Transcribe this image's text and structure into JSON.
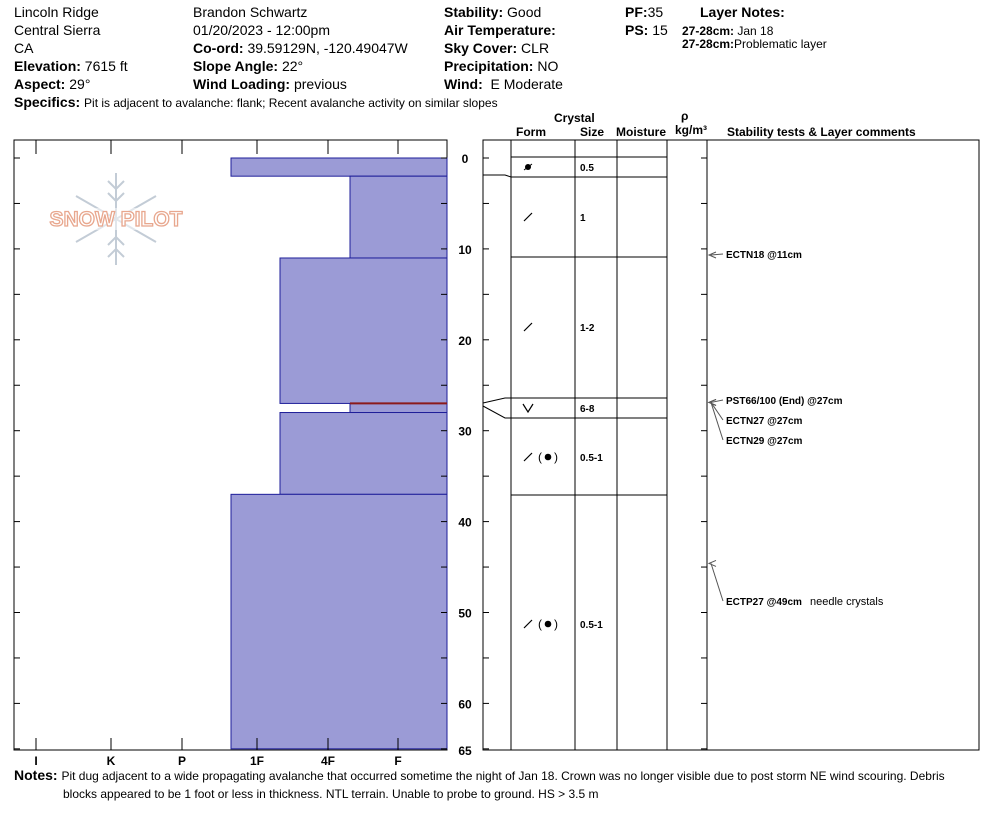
{
  "header": {
    "location": "Lincoln Ridge",
    "range": "Central Sierra",
    "state": "CA",
    "elevation_label": "Elevation:",
    "elevation": "7615 ft",
    "aspect_label": "Aspect:",
    "aspect": "29°",
    "observer": "Brandon Schwartz",
    "datetime": "01/20/2023 - 12:00pm",
    "coord_label": "Co-ord:",
    "coord": "39.59129N, -120.49047W",
    "slope_label": "Slope Angle:",
    "slope": "22°",
    "wind_loading_label": "Wind Loading:",
    "wind_loading": "previous",
    "stability_label": "Stability:",
    "stability": "Good",
    "air_temp_label": "Air Temperature:",
    "air_temp": "",
    "sky_label": "Sky Cover:",
    "sky": "CLR",
    "precip_label": "Precipitation:",
    "precip": "NO",
    "wind_label": "Wind:",
    "wind": "E Moderate",
    "pf_label": "PF:",
    "pf": "35",
    "ps_label": "PS:",
    "ps": "15",
    "layer_notes_label": "Layer Notes:",
    "layer_notes": [
      {
        "depth": "27-28cm:",
        "text": "Jan 18"
      },
      {
        "depth": "27-28cm:",
        "text": "Problematic layer"
      }
    ],
    "specifics_label": "Specifics:",
    "specifics": "Pit is adjacent to avalanche: flank; Recent avalanche activity on similar slopes"
  },
  "logo": {
    "text": "SNOW PILOT"
  },
  "columns": {
    "crystal": "Crystal",
    "form": "Form",
    "size": "Size",
    "moisture": "Moisture",
    "rho": "ρ",
    "density_unit": "kg/m³",
    "stability": "Stability tests & Layer comments"
  },
  "chart_data": {
    "type": "bar",
    "title": "",
    "depth_range": [
      0,
      65
    ],
    "depth_ticks": [
      0,
      10,
      20,
      30,
      40,
      50,
      60,
      65
    ],
    "hardness_ticks": [
      "I",
      "K",
      "P",
      "1F",
      "4F",
      "F"
    ],
    "hardness_scale_note": "hardness index: F=0 … I=6",
    "layers": [
      {
        "top": 0,
        "bottom": 2,
        "hardness_index": 2.4
      },
      {
        "top": 2,
        "bottom": 11,
        "hardness_index": 0.7
      },
      {
        "top": 11,
        "bottom": 27,
        "hardness_index": 1.7
      },
      {
        "top": 27,
        "bottom": 28,
        "hardness_index": 0.7
      },
      {
        "top": 28,
        "bottom": 37,
        "hardness_index": 1.7
      },
      {
        "top": 37,
        "bottom": 65,
        "hardness_index": 2.4
      }
    ],
    "weak_layer_depth": 27,
    "crystal_rows": [
      {
        "top": 0,
        "bottom": 2,
        "form": "rounding-faceted",
        "size": "0.5"
      },
      {
        "top": 2,
        "bottom": 11,
        "form": "decomposing",
        "size": "1"
      },
      {
        "top": 11,
        "bottom": 27,
        "form": "decomposing",
        "size": "1-2"
      },
      {
        "top": 27,
        "bottom": 28,
        "form": "surface-hoar",
        "size": "6-8"
      },
      {
        "top": 28,
        "bottom": 37,
        "form": "decomposing-rounded",
        "size": "0.5-1"
      },
      {
        "top": 37,
        "bottom": 65,
        "form": "decomposing-rounded",
        "size": "0.5-1"
      }
    ],
    "tests": [
      {
        "depth": 11,
        "label": "ECTN18 @11cm",
        "comment": ""
      },
      {
        "depth": 27,
        "label": "PST66/100 (End) @27cm",
        "comment": ""
      },
      {
        "depth": 27,
        "label": "ECTN27 @27cm",
        "comment": ""
      },
      {
        "depth": 27,
        "label": "ECTN29 @27cm",
        "comment": ""
      },
      {
        "depth": 49,
        "label": "ECTP27 @49cm",
        "comment": "needle crystals"
      }
    ]
  },
  "notes_label": "Notes:",
  "notes_line1": "Pit dug adjacent to a wide propagating avalanche that occurred sometime the night of Jan 18. Crown was no longer visible due to post storm NE wind scouring. Debris",
  "notes_line2": "blocks appeared to be 1 foot or less in thickness. NTL terrain. Unable to probe to ground. HS > 3.5 m",
  "colors": {
    "layer_fill": "#9b9bd6",
    "layer_stroke": "#1e1e99",
    "weak_layer": "#8b1a1a",
    "logo": "#e8a78e"
  }
}
